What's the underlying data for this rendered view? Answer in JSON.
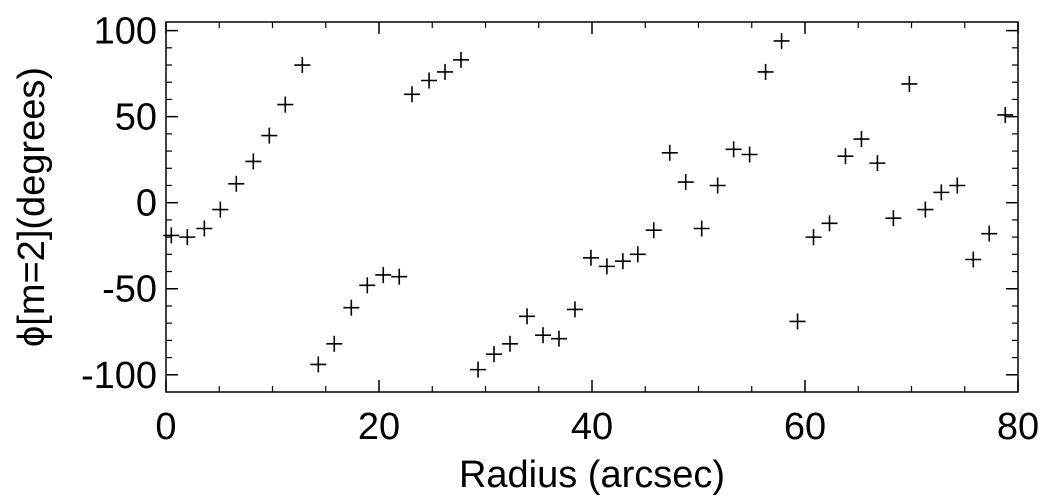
{
  "chart_data": {
    "type": "scatter",
    "title": "",
    "xlabel": "Radius (arcsec)",
    "ylabel": "ϕ[m=2](degrees)",
    "xlim": [
      0,
      80
    ],
    "ylim": [
      -110,
      105
    ],
    "xticks": [
      0,
      20,
      40,
      60,
      80
    ],
    "xtick_labels": [
      "0",
      "20",
      "40",
      "60",
      "80"
    ],
    "yticks": [
      -100,
      -50,
      0,
      50,
      100
    ],
    "ytick_labels": [
      "-100",
      "-50",
      "0",
      "50",
      "100"
    ],
    "marker": "plus",
    "grid": false,
    "color": "#000000",
    "series": [
      {
        "points": [
          [
            0.5,
            -19
          ],
          [
            2.0,
            -20
          ],
          [
            3.6,
            -15
          ],
          [
            5.1,
            -4
          ],
          [
            6.6,
            11
          ],
          [
            8.2,
            24
          ],
          [
            9.7,
            39
          ],
          [
            11.2,
            57
          ],
          [
            12.8,
            80
          ],
          [
            14.3,
            -94
          ],
          [
            15.8,
            -82
          ],
          [
            17.4,
            -61
          ],
          [
            18.9,
            -48
          ],
          [
            20.4,
            -42
          ],
          [
            21.9,
            -43
          ],
          [
            23.1,
            63
          ],
          [
            24.7,
            71
          ],
          [
            26.2,
            76
          ],
          [
            27.7,
            83
          ],
          [
            29.3,
            -97
          ],
          [
            30.8,
            -88
          ],
          [
            32.3,
            -82
          ],
          [
            33.9,
            -66
          ],
          [
            35.4,
            -77
          ],
          [
            36.9,
            -79
          ],
          [
            38.4,
            -62
          ],
          [
            39.9,
            -32
          ],
          [
            41.4,
            -37
          ],
          [
            42.9,
            -34
          ],
          [
            44.3,
            -30
          ],
          [
            45.8,
            -16
          ],
          [
            47.3,
            29
          ],
          [
            48.8,
            12
          ],
          [
            50.3,
            -15
          ],
          [
            51.8,
            10
          ],
          [
            53.3,
            31
          ],
          [
            54.8,
            28
          ],
          [
            56.3,
            76
          ],
          [
            57.8,
            94
          ],
          [
            59.3,
            -69
          ],
          [
            60.8,
            -20
          ],
          [
            62.3,
            -12
          ],
          [
            63.8,
            27
          ],
          [
            65.3,
            37
          ],
          [
            66.8,
            23
          ],
          [
            68.3,
            -9
          ],
          [
            69.8,
            69
          ],
          [
            71.3,
            -4
          ],
          [
            72.8,
            6
          ],
          [
            74.3,
            10
          ],
          [
            75.8,
            -33
          ],
          [
            77.3,
            -18
          ],
          [
            78.8,
            51
          ]
        ]
      }
    ]
  }
}
